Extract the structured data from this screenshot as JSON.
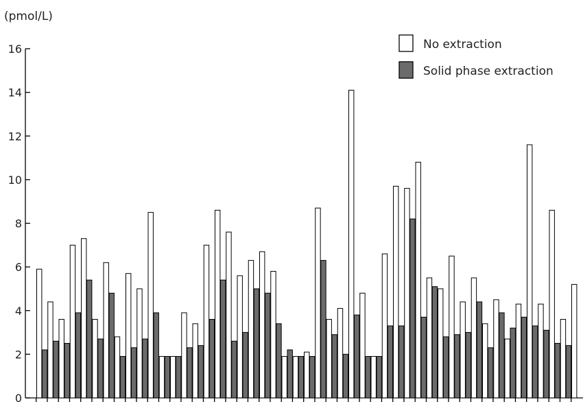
{
  "chart_data": {
    "type": "bar",
    "ylabel": "(pmol/L)",
    "ylim": [
      0,
      16
    ],
    "yticks": [
      0,
      2,
      4,
      6,
      8,
      10,
      12,
      14,
      16
    ],
    "yticks_text": [
      "0",
      "2",
      "4",
      "6",
      "8",
      "10",
      "12",
      "14",
      "16"
    ],
    "legend_position": "top-right",
    "grid": false,
    "series": [
      {
        "name": "No extraction",
        "color": "#ffffff",
        "values": [
          5.9,
          4.4,
          3.6,
          7.0,
          7.3,
          3.6,
          6.2,
          2.8,
          5.7,
          5.0,
          8.5,
          1.9,
          1.9,
          3.9,
          3.4,
          7.0,
          8.6,
          7.6,
          5.6,
          6.3,
          6.7,
          5.8,
          1.9,
          1.9,
          2.1,
          8.7,
          3.6,
          4.1,
          14.1,
          4.8,
          1.9,
          6.6,
          9.7,
          9.6,
          10.8,
          5.5,
          5.0,
          6.5,
          4.4,
          5.5,
          3.4,
          4.5,
          2.7,
          4.3,
          11.6,
          4.3,
          8.6,
          3.6,
          5.2
        ]
      },
      {
        "name": "Solid phase extraction",
        "color": "#6b6b6b",
        "values": [
          2.2,
          2.6,
          2.5,
          3.9,
          5.4,
          2.7,
          4.8,
          1.9,
          2.3,
          2.7,
          3.9,
          1.9,
          1.9,
          2.3,
          2.4,
          3.6,
          5.4,
          2.6,
          3.0,
          5.0,
          4.8,
          3.4,
          2.2,
          1.9,
          1.9,
          6.3,
          2.9,
          2.0,
          3.8,
          1.9,
          1.9,
          3.3,
          3.3,
          8.2,
          3.7,
          5.1,
          2.8,
          2.9,
          3.0,
          4.4,
          2.3,
          3.9,
          3.2,
          3.7,
          3.3,
          3.1,
          2.5,
          2.4,
          null
        ]
      }
    ]
  }
}
